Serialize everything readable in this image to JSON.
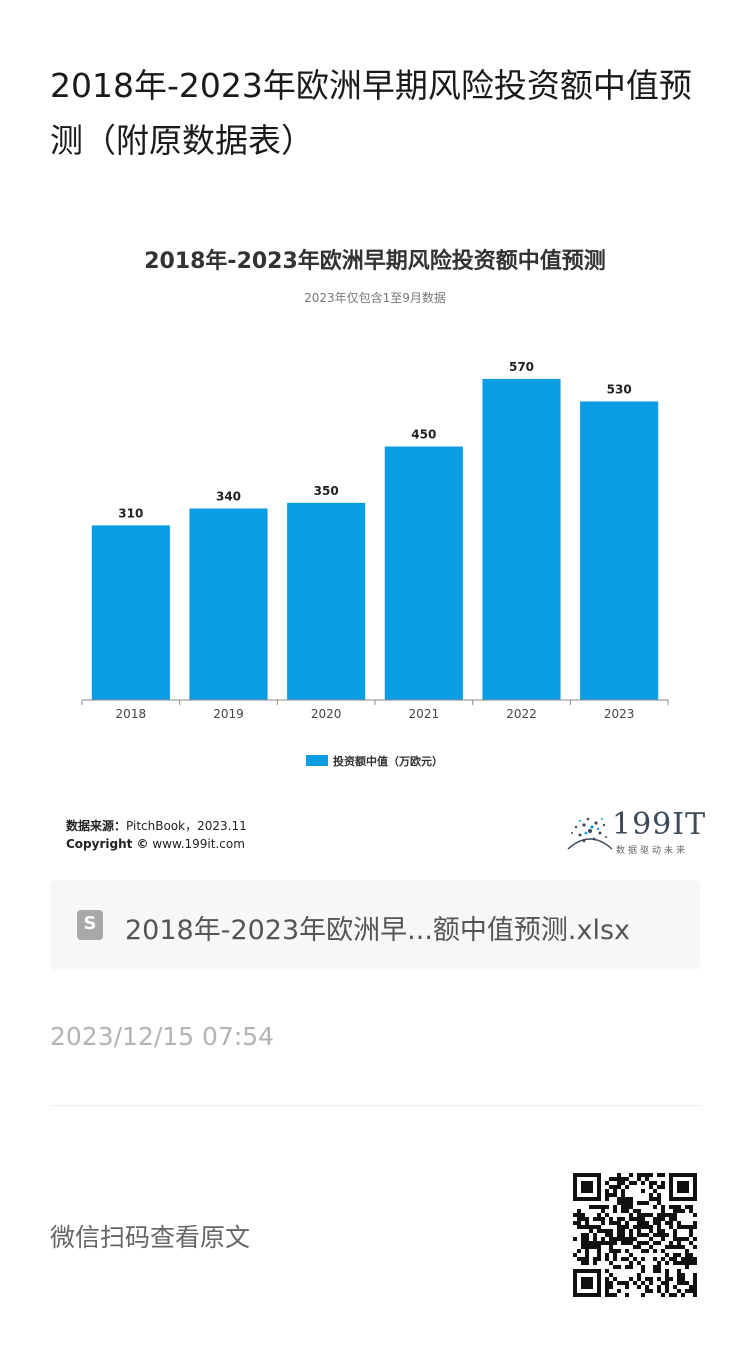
{
  "page": {
    "title": "2018年-2023年欧洲早期风险投资额中值预测（附原数据表）"
  },
  "chart_data": {
    "type": "bar",
    "title": "2018年-2023年欧洲早期风险投资额中值预测",
    "subtitle": "2023年仅包含1至9月数据",
    "categories": [
      "2018",
      "2019",
      "2020",
      "2021",
      "2022",
      "2023"
    ],
    "series": [
      {
        "name": "投资额中值（万欧元）",
        "values": [
          310,
          340,
          350,
          450,
          570,
          530
        ]
      }
    ],
    "ylim": [
      0,
      600
    ],
    "grid": false,
    "legend": "bottom",
    "color": "#0b9de3"
  },
  "source": {
    "label": "数据来源：",
    "value": "PitchBook，2023.11",
    "copyright_label": "Copyright ©",
    "copyright_value": "www.199it.com"
  },
  "logo": {
    "text": "199IT",
    "tagline": "数据驱动未来"
  },
  "file_card": {
    "icon": "spreadsheet-icon",
    "icon_letter": "S",
    "filename": "2018年-2023年欧洲早...额中值预测.xlsx"
  },
  "timestamp": "2023/12/15 07:54",
  "footer": {
    "scan_text": "微信扫码查看原文"
  }
}
